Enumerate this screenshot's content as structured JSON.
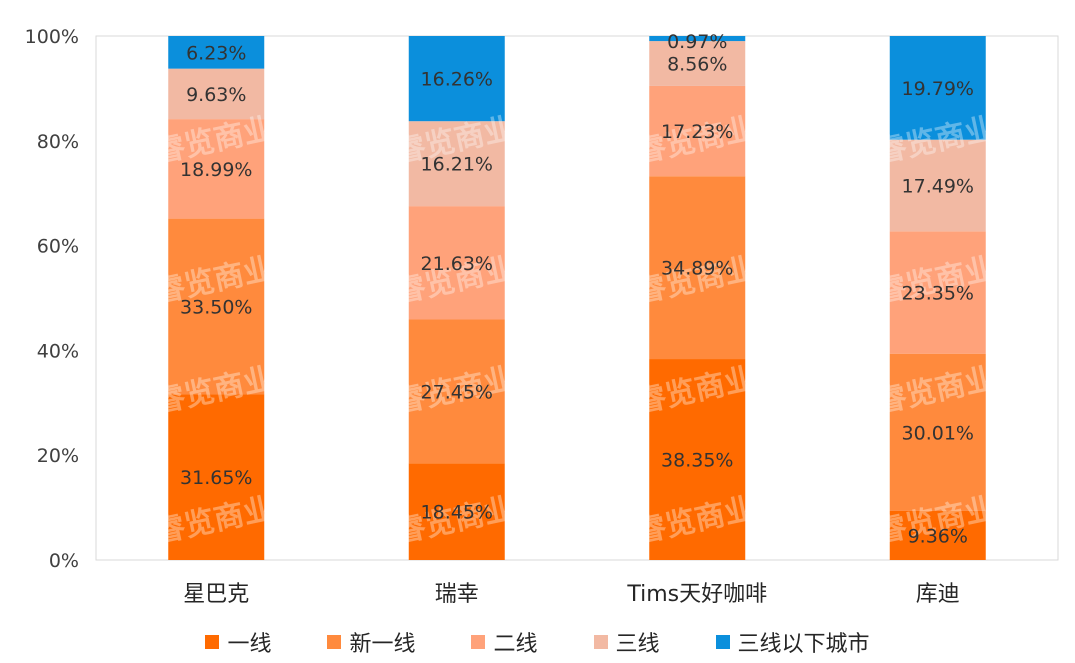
{
  "chart_data": {
    "type": "bar",
    "stacked": true,
    "categories": [
      "星巴克",
      "瑞幸",
      "Tims天好咖啡",
      "库迪"
    ],
    "series": [
      {
        "name": "一线",
        "color": "#ff6a00",
        "values": [
          31.65,
          18.45,
          38.35,
          9.36
        ],
        "labels": [
          "31.65%",
          "18.45%",
          "38.35%",
          "9.36%"
        ]
      },
      {
        "name": "新一线",
        "color": "#ff8a3d",
        "values": [
          33.5,
          27.45,
          34.89,
          30.01
        ],
        "labels": [
          "33.50%",
          "27.45%",
          "34.89%",
          "30.01%"
        ]
      },
      {
        "name": "二线",
        "color": "#ffa27a",
        "values": [
          18.99,
          21.63,
          17.23,
          23.35
        ],
        "labels": [
          "18.99%",
          "21.63%",
          "17.23%",
          "23.35%"
        ]
      },
      {
        "name": "三线",
        "color": "#f2b9a3",
        "values": [
          9.63,
          16.21,
          8.56,
          17.49
        ],
        "labels": [
          "9.63%",
          "16.21%",
          "8.56%",
          "17.49%"
        ]
      },
      {
        "name": "三线以下城市",
        "color": "#0b8fdc",
        "values": [
          6.23,
          16.26,
          0.97,
          19.79
        ],
        "labels": [
          "6.23%",
          "16.26%",
          "0.97%",
          "19.79%"
        ]
      }
    ],
    "y_ticks": [
      "0%",
      "20%",
      "40%",
      "60%",
      "80%",
      "100%"
    ],
    "ylim": [
      0,
      100
    ],
    "legend_position": "bottom",
    "grid": false,
    "watermark": "睿览商业"
  }
}
